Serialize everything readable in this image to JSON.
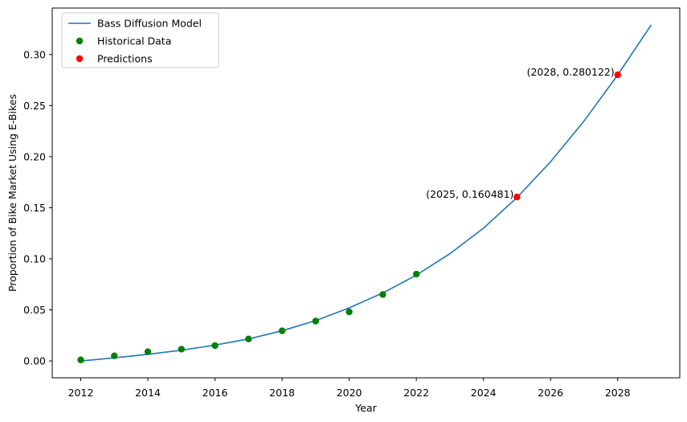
{
  "chart_data": {
    "type": "line",
    "title": "",
    "xlabel": "Year",
    "ylabel": "Proportion of Bike Market Using E-Bikes",
    "xlim": [
      2011.15,
      2029.85
    ],
    "ylim": [
      -0.0165,
      0.3455
    ],
    "xticks": [
      2012,
      2014,
      2016,
      2018,
      2020,
      2022,
      2024,
      2026,
      2028
    ],
    "yticks": [
      0.0,
      0.05,
      0.1,
      0.15,
      0.2,
      0.25,
      0.3
    ],
    "ytick_labels": [
      "0.00",
      "0.05",
      "0.10",
      "0.15",
      "0.20",
      "0.25",
      "0.30"
    ],
    "grid": false,
    "legend_placement": "upper-left",
    "series": [
      {
        "name": "Bass Diffusion Model",
        "kind": "line",
        "color": "#1f77b4",
        "x": [
          2012,
          2013,
          2014,
          2015,
          2016,
          2017,
          2018,
          2019,
          2020,
          2021,
          2022,
          2023,
          2024,
          2025,
          2026,
          2027,
          2028,
          2029
        ],
        "y": [
          0.0,
          0.003,
          0.0065,
          0.0105,
          0.0155,
          0.0215,
          0.0295,
          0.0395,
          0.052,
          0.0665,
          0.084,
          0.105,
          0.13,
          0.16,
          0.195,
          0.235,
          0.28,
          0.329
        ]
      },
      {
        "name": "Historical Data",
        "kind": "points",
        "color": "#008000",
        "x": [
          2012,
          2013,
          2014,
          2015,
          2016,
          2017,
          2018,
          2019,
          2020,
          2021,
          2022
        ],
        "y": [
          0.001,
          0.005,
          0.009,
          0.0115,
          0.015,
          0.0215,
          0.0295,
          0.039,
          0.048,
          0.065,
          0.085
        ]
      },
      {
        "name": "Predictions",
        "kind": "points",
        "color": "#ff0000",
        "x": [
          2025,
          2028
        ],
        "y": [
          0.160481,
          0.280122
        ]
      }
    ],
    "annotations": [
      {
        "text": "(2025, 0.160481)",
        "x": 2025,
        "y": 0.160481
      },
      {
        "text": "(2028, 0.280122)",
        "x": 2028,
        "y": 0.280122
      }
    ]
  }
}
